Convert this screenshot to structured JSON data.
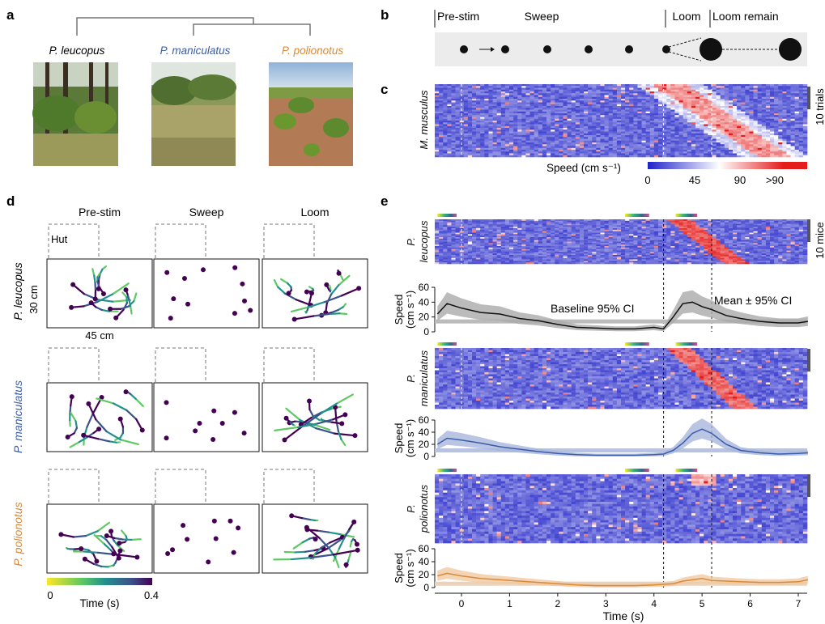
{
  "panels": {
    "a": "a",
    "b": "b",
    "c": "c",
    "d": "d",
    "e": "e"
  },
  "panel_a": {
    "species": [
      {
        "name": "P. leucopus",
        "color": "#111111"
      },
      {
        "name": "P. maniculatus",
        "color": "#3a5ca8"
      },
      {
        "name": "P. polionotus",
        "color": "#d98a3a"
      }
    ]
  },
  "panel_b": {
    "phases": [
      "Pre-stim",
      "Sweep",
      "Loom",
      "Loom remain"
    ]
  },
  "panel_c": {
    "ylabel": "M. musculus",
    "scale_label": "10 trials",
    "colorbar": {
      "label": "Speed (cm s⁻¹)",
      "ticks": [
        "0",
        "45",
        "90",
        ">90"
      ]
    }
  },
  "panel_d": {
    "columns": [
      "Pre-stim",
      "Sweep",
      "Loom"
    ],
    "species": [
      "P. leucopus",
      "P. maniculatus",
      "P. polionotus"
    ],
    "species_colors": [
      "#111111",
      "#3a5ca8",
      "#d98a3a"
    ],
    "hut_label": "Hut",
    "size_v": "30 cm",
    "size_h": "45 cm",
    "time_bar": {
      "label": "Time (s)",
      "ticks": [
        "0",
        "0.4"
      ]
    }
  },
  "panel_e": {
    "species_top": [
      "P.",
      "P.",
      "P."
    ],
    "species_bottom": [
      "leucopus",
      "maniculatus",
      "polionotus"
    ],
    "species_colors": [
      "#111111",
      "#3a5ca8",
      "#d98a3a"
    ],
    "scale_label": "10 mice",
    "ylabel": "Speed",
    "ylabel2": "(cm s⁻¹)",
    "yticks": [
      "60",
      "40",
      "20",
      "0"
    ],
    "annot_baseline": "Baseline 95% CI",
    "annot_mean": "Mean ± 95% CI",
    "xlabel": "Time (s)",
    "xticks": [
      "0",
      "1",
      "2",
      "3",
      "4",
      "5",
      "6",
      "7"
    ]
  },
  "chart_data": [
    {
      "type": "line",
      "series": [
        {
          "name": "P. leucopus",
          "x": [
            -0.5,
            -0.3,
            0,
            0.4,
            0.8,
            1.2,
            1.6,
            2.0,
            2.4,
            2.8,
            3.2,
            3.6,
            4.0,
            4.2,
            4.4,
            4.6,
            4.8,
            5.0,
            5.2,
            5.5,
            5.8,
            6.2,
            6.6,
            7.0,
            7.2
          ],
          "y": [
            24,
            38,
            32,
            26,
            24,
            18,
            15,
            10,
            6,
            5,
            4,
            4,
            6,
            4,
            20,
            38,
            40,
            34,
            30,
            22,
            18,
            14,
            12,
            12,
            14
          ]
        }
      ],
      "ylim": [
        0,
        60
      ],
      "xlim": [
        -0.5,
        7.2
      ],
      "baseline": 14
    },
    {
      "type": "line",
      "series": [
        {
          "name": "P. maniculatus",
          "x": [
            -0.5,
            -0.3,
            0,
            0.4,
            0.8,
            1.2,
            1.6,
            2.0,
            2.4,
            2.8,
            3.2,
            3.6,
            4.0,
            4.2,
            4.4,
            4.6,
            4.8,
            5.0,
            5.2,
            5.5,
            5.8,
            6.2,
            6.6,
            7.0,
            7.2
          ],
          "y": [
            20,
            30,
            27,
            22,
            16,
            12,
            8,
            5,
            3,
            2,
            2,
            2,
            3,
            4,
            10,
            22,
            38,
            45,
            38,
            20,
            10,
            6,
            4,
            5,
            6
          ]
        }
      ],
      "ylim": [
        0,
        60
      ],
      "xlim": [
        -0.5,
        7.2
      ],
      "baseline": 10
    },
    {
      "type": "line",
      "series": [
        {
          "name": "P. polionotus",
          "x": [
            -0.5,
            -0.3,
            0,
            0.4,
            0.8,
            1.2,
            1.6,
            2.0,
            2.4,
            2.8,
            3.2,
            3.6,
            4.0,
            4.2,
            4.4,
            4.6,
            4.8,
            5.0,
            5.2,
            5.5,
            5.8,
            6.2,
            6.6,
            7.0,
            7.2
          ],
          "y": [
            18,
            22,
            18,
            14,
            12,
            10,
            8,
            6,
            4,
            3,
            3,
            3,
            4,
            5,
            6,
            10,
            12,
            14,
            11,
            10,
            9,
            8,
            8,
            9,
            12
          ]
        }
      ],
      "ylim": [
        0,
        60
      ],
      "xlim": [
        -0.5,
        7.2
      ],
      "baseline": 6
    }
  ]
}
